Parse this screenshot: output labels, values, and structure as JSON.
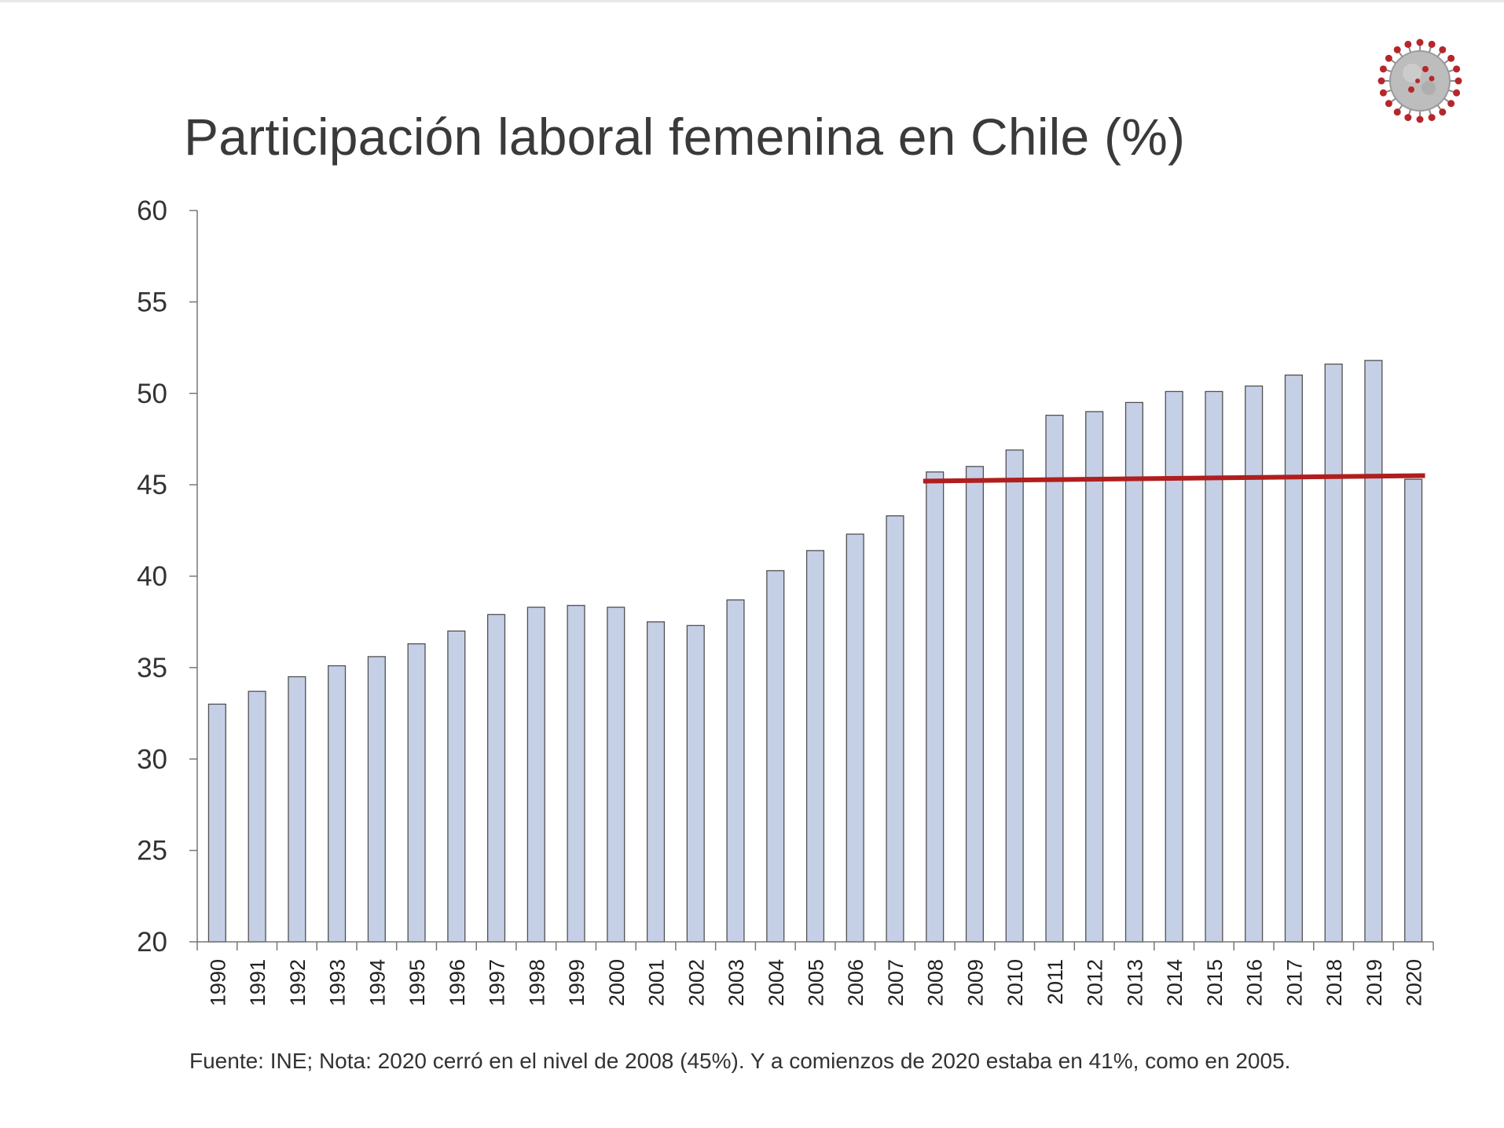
{
  "colors": {
    "bar_fill": "#c5d0e6",
    "bar_stroke": "#505050",
    "reference_line": "#b01e1e",
    "axis": "#777777",
    "virus_body": "#b9b9b9",
    "virus_spike": "#b5272b"
  },
  "icons": {
    "corner": "coronavirus-icon"
  },
  "chart_data": {
    "type": "bar",
    "title": "Participación laboral femenina en Chile (%)",
    "xlabel": "",
    "ylabel": "",
    "ylim": [
      20,
      60
    ],
    "yticks": [
      "20",
      "25",
      "30",
      "35",
      "40",
      "45",
      "50",
      "55",
      "60"
    ],
    "grid": false,
    "categories": [
      "1990",
      "1991",
      "1992",
      "1993",
      "1994",
      "1995",
      "1996",
      "1997",
      "1998",
      "1999",
      "2000",
      "2001",
      "2002",
      "2003",
      "2004",
      "2005",
      "2006",
      "2007",
      "2008",
      "2009",
      "2010",
      "2011",
      "2012",
      "2013",
      "2014",
      "2015",
      "2016",
      "2017",
      "2018",
      "2019",
      "2020"
    ],
    "values": [
      33.0,
      33.7,
      34.5,
      35.1,
      35.6,
      36.3,
      37.0,
      37.9,
      38.3,
      38.4,
      38.3,
      37.5,
      37.3,
      38.7,
      40.3,
      41.4,
      42.3,
      43.3,
      45.7,
      46.0,
      46.9,
      48.8,
      49.0,
      49.5,
      50.1,
      50.1,
      50.4,
      51.0,
      51.6,
      51.8,
      45.3
    ],
    "reference_line": {
      "label": "nivel de 2008",
      "from": "2008",
      "to": "2020",
      "y_start": 45.2,
      "y_end": 45.5
    },
    "note": "Fuente: INE; Nota: 2020 cerró en el nivel de 2008 (45%). Y a comienzos de 2020 estaba en 41%, como en 2005."
  }
}
